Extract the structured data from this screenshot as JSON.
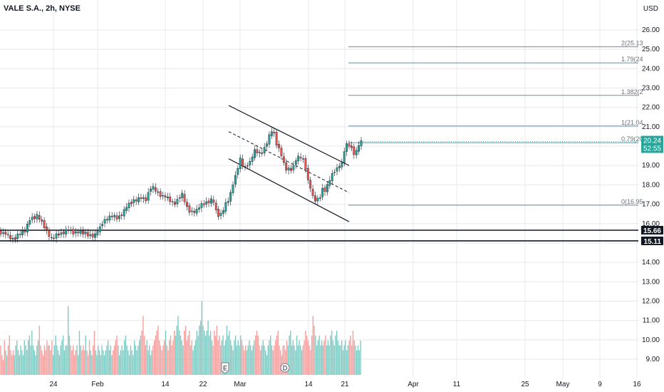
{
  "header": {
    "symbol": "VALE S.A., 2h, NYSE",
    "currency": "USD"
  },
  "chart_data": {
    "type": "candlestick",
    "price_axis": {
      "min": 8.25,
      "max": 26.75,
      "ticks": [
        9.0,
        10.0,
        11.0,
        12.0,
        13.0,
        14.0,
        15.0,
        16.0,
        17.0,
        18.0,
        19.0,
        20.0,
        21.0,
        22.0,
        23.0,
        24.0,
        25.0,
        26.0
      ]
    },
    "time_axis": {
      "labels": [
        "24",
        "Feb",
        "14",
        "22",
        "Mar",
        "14",
        "21",
        "Apr",
        "11",
        "25",
        "May",
        "9",
        "16"
      ]
    },
    "price_path": [
      [
        1,
        15.55
      ],
      [
        6,
        15.5
      ],
      [
        10,
        15.5
      ],
      [
        14,
        15.3
      ],
      [
        18,
        15.2
      ],
      [
        22,
        15.2
      ],
      [
        26,
        15.4
      ],
      [
        30,
        15.5
      ],
      [
        34,
        15.6
      ],
      [
        38,
        15.6
      ],
      [
        42,
        16.2
      ],
      [
        46,
        16.3
      ],
      [
        50,
        16.3
      ],
      [
        54,
        16.4
      ],
      [
        58,
        16.2
      ],
      [
        62,
        16.0
      ],
      [
        66,
        15.7
      ],
      [
        70,
        15.4
      ],
      [
        74,
        15.2
      ],
      [
        78,
        15.3
      ],
      [
        82,
        15.45
      ],
      [
        86,
        15.5
      ],
      [
        90,
        15.5
      ],
      [
        94,
        15.6
      ],
      [
        98,
        15.7
      ],
      [
        102,
        15.6
      ],
      [
        106,
        15.5
      ],
      [
        110,
        15.55
      ],
      [
        114,
        15.6
      ],
      [
        118,
        15.5
      ],
      [
        122,
        15.5
      ],
      [
        126,
        15.4
      ],
      [
        130,
        15.4
      ],
      [
        134,
        15.3
      ],
      [
        138,
        15.6
      ],
      [
        142,
        15.8
      ],
      [
        146,
        16.1
      ],
      [
        150,
        16.2
      ],
      [
        154,
        16.3
      ],
      [
        158,
        16.4
      ],
      [
        162,
        16.35
      ],
      [
        166,
        16.3
      ],
      [
        170,
        16.4
      ],
      [
        174,
        16.5
      ],
      [
        178,
        16.8
      ],
      [
        182,
        17.0
      ],
      [
        186,
        17.1
      ],
      [
        190,
        17.2
      ],
      [
        194,
        17.2
      ],
      [
        198,
        17.35
      ],
      [
        202,
        17.3
      ],
      [
        206,
        17.2
      ],
      [
        210,
        17.6
      ],
      [
        214,
        17.9
      ],
      [
        218,
        17.8
      ],
      [
        222,
        17.6
      ],
      [
        226,
        17.5
      ],
      [
        230,
        17.4
      ],
      [
        234,
        17.4
      ],
      [
        238,
        17.3
      ],
      [
        242,
        17.1
      ],
      [
        246,
        17.0
      ],
      [
        250,
        17.2
      ],
      [
        254,
        17.4
      ],
      [
        258,
        17.5
      ],
      [
        262,
        17.0
      ],
      [
        266,
        16.7
      ],
      [
        270,
        16.6
      ],
      [
        274,
        16.6
      ],
      [
        278,
        16.7
      ],
      [
        282,
        16.9
      ],
      [
        286,
        17.0
      ],
      [
        290,
        17.1
      ],
      [
        294,
        17.1
      ],
      [
        298,
        17.2
      ],
      [
        302,
        17.1
      ],
      [
        306,
        16.5
      ],
      [
        310,
        16.4
      ],
      [
        314,
        16.6
      ],
      [
        318,
        17.0
      ],
      [
        322,
        17.2
      ],
      [
        326,
        17.6
      ],
      [
        330,
        18.3
      ],
      [
        334,
        18.6
      ],
      [
        338,
        19.4
      ],
      [
        342,
        19.0
      ],
      [
        346,
        18.9
      ],
      [
        350,
        19.1
      ],
      [
        354,
        19.2
      ],
      [
        358,
        19.8
      ],
      [
        362,
        19.7
      ],
      [
        366,
        19.6
      ],
      [
        370,
        19.7
      ],
      [
        374,
        20.0
      ],
      [
        378,
        20.3
      ],
      [
        382,
        20.8
      ],
      [
        386,
        20.7
      ],
      [
        390,
        20.1
      ],
      [
        394,
        19.8
      ],
      [
        398,
        19.4
      ],
      [
        402,
        18.8
      ],
      [
        406,
        18.8
      ],
      [
        410,
        18.8
      ],
      [
        414,
        19.0
      ],
      [
        418,
        19.4
      ],
      [
        422,
        19.4
      ],
      [
        426,
        19.4
      ],
      [
        430,
        19.0
      ],
      [
        434,
        18.2
      ],
      [
        438,
        17.8
      ],
      [
        442,
        17.2
      ],
      [
        446,
        17.2
      ],
      [
        450,
        17.3
      ],
      [
        454,
        17.8
      ],
      [
        458,
        17.7
      ],
      [
        462,
        18.0
      ],
      [
        466,
        18.4
      ],
      [
        470,
        18.7
      ],
      [
        474,
        18.8
      ],
      [
        478,
        19.0
      ],
      [
        482,
        19.1
      ],
      [
        486,
        20.0
      ],
      [
        490,
        20.1
      ],
      [
        494,
        20.0
      ],
      [
        498,
        19.6
      ],
      [
        502,
        19.7
      ],
      [
        507,
        20.24
      ]
    ],
    "volume": [
      0.3,
      0.2,
      0.15,
      0.35,
      0.25,
      0.2,
      0.3,
      0.4,
      0.25,
      0.2,
      0.25,
      0.2,
      0.3,
      0.35,
      0.25,
      0.2,
      0.3,
      0.25,
      0.2,
      0.35,
      0.3,
      0.25,
      0.35,
      0.4,
      0.3,
      0.45,
      0.3,
      0.25,
      0.2,
      0.3,
      0.35,
      0.5,
      0.3,
      0.25,
      0.2,
      0.3,
      0.25,
      0.35,
      0.3,
      0.3,
      0.25,
      0.35,
      0.2,
      0.3,
      0.4,
      0.3,
      0.25,
      0.2,
      0.3,
      0.35,
      0.4,
      0.25,
      0.3,
      0.3,
      0.7,
      0.4,
      0.3,
      0.25,
      0.3,
      0.2,
      0.25,
      0.3,
      0.2,
      0.45,
      0.3,
      0.25,
      0.3,
      0.25,
      0.4,
      0.25,
      0.2,
      0.35,
      0.25,
      0.2,
      0.3,
      0.45,
      0.25,
      0.2,
      0.3,
      0.25,
      0.2,
      0.3,
      0.25,
      0.2,
      0.25,
      0.3,
      0.35,
      0.25,
      0.3,
      0.2,
      0.25,
      0.3,
      0.35,
      0.4,
      0.3,
      0.2,
      0.25,
      0.3,
      0.25,
      0.35,
      0.4,
      0.3,
      0.25,
      0.2,
      0.3,
      0.25,
      0.2,
      0.35,
      0.3,
      0.25,
      0.3,
      0.35,
      0.4,
      0.45,
      0.6,
      0.4,
      0.3,
      0.35,
      0.25,
      0.3,
      0.2,
      0.25,
      0.3,
      0.35,
      0.4,
      0.45,
      0.5,
      0.35,
      0.3,
      0.25,
      0.3,
      0.35,
      0.45,
      0.3,
      0.25,
      0.35,
      0.4,
      0.3,
      0.35,
      0.45,
      0.4,
      0.5,
      0.6,
      0.45,
      0.4,
      0.35,
      0.3,
      0.45,
      0.5,
      0.35,
      0.4,
      0.45,
      0.3,
      0.35,
      0.25,
      0.3,
      0.35,
      0.45,
      0.4,
      0.5,
      0.55,
      0.75,
      0.5,
      0.45,
      0.4,
      0.45,
      0.55,
      0.4,
      0.45,
      0.35,
      0.3,
      0.45,
      0.4,
      0.5,
      0.35,
      0.4,
      0.3,
      0.35,
      0.4,
      0.3,
      0.35,
      0.5,
      0.4,
      0.45,
      0.35,
      0.3,
      0.25,
      0.35,
      0.4,
      0.3,
      0.35,
      0.3,
      0.4,
      0.35,
      0.3,
      0.25,
      0.3,
      0.25,
      0.3,
      0.35,
      0.3,
      0.25,
      0.3,
      0.35,
      0.4,
      0.45,
      0.4,
      0.3,
      0.25,
      0.3,
      0.35,
      0.3,
      0.25,
      0.2,
      0.3,
      0.35,
      0.4,
      0.3,
      0.25,
      0.3,
      0.35,
      0.4,
      0.45,
      0.3,
      0.25,
      0.2,
      0.3,
      0.3,
      0.25,
      0.35,
      0.3,
      0.4,
      0.45,
      0.3,
      0.35,
      0.3,
      0.25,
      0.4,
      0.3,
      0.35,
      0.3,
      0.25,
      0.3,
      0.35,
      0.45,
      0.4,
      0.35,
      0.3,
      0.25,
      0.4,
      0.6,
      0.5,
      0.4,
      0.3,
      0.35,
      0.4,
      0.3,
      0.35,
      0.3,
      0.35,
      0.4,
      0.3,
      0.35,
      0.3,
      0.4,
      0.45,
      0.35,
      0.3,
      0.4,
      0.45,
      0.35,
      0.3,
      0.3,
      0.35,
      0.25,
      0.3,
      0.35,
      0.25,
      0.3,
      0.35,
      0.4,
      0.3,
      0.45,
      0.35,
      0.3,
      0.25,
      0.3,
      0.25,
      0.35
    ],
    "channel": {
      "upper": {
        "from": [
          321,
          22.1
        ],
        "to": [
          490,
          19.0
        ]
      },
      "middle": {
        "from": [
          321,
          20.75
        ],
        "to": [
          490,
          17.6
        ]
      },
      "lower": {
        "from": [
          321,
          19.35
        ],
        "to": [
          490,
          16.1
        ]
      }
    },
    "fib_levels": [
      {
        "label": "2(25.13",
        "price": 25.13
      },
      {
        "label": "1.79(24",
        "price": 24.3
      },
      {
        "label": "1.382(2",
        "price": 22.62
      },
      {
        "label": "1(21.04",
        "price": 21.04
      },
      {
        "label": "0.79(20",
        "price": 20.18
      },
      {
        "label": "0(16.95",
        "price": 16.95
      }
    ],
    "horizontal_lines": [
      {
        "label": "15.66",
        "price": 15.66
      },
      {
        "label": "15.11",
        "price": 15.11
      }
    ],
    "last_price": {
      "price": 20.24,
      "label": "20.24",
      "countdown": "52:55"
    },
    "event_markers": [
      {
        "label": "E",
        "x": 316
      },
      {
        "label": "D",
        "x": 400
      }
    ],
    "colors": {
      "up": "#26a69a",
      "down": "#ef5350",
      "up_vol": "#7fcbc4",
      "down_vol": "#f4a09e",
      "grid": "#e6e8ec",
      "bg": "#ffffff"
    }
  }
}
